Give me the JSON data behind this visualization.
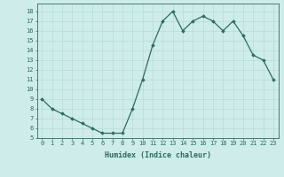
{
  "x": [
    0,
    1,
    2,
    3,
    4,
    5,
    6,
    7,
    8,
    9,
    10,
    11,
    12,
    13,
    14,
    15,
    16,
    17,
    18,
    19,
    20,
    21,
    22,
    23
  ],
  "y": [
    9,
    8,
    7.5,
    7,
    6.5,
    6,
    5.5,
    5.5,
    5.5,
    8,
    11,
    14.5,
    17,
    18,
    16,
    17,
    17.5,
    17,
    16,
    17,
    15.5,
    13.5,
    13,
    11
  ],
  "line_color": "#2e6b5e",
  "marker": "D",
  "marker_size": 1.8,
  "linewidth": 0.9,
  "xlabel": "Humidex (Indice chaleur)",
  "ylabel": "",
  "xlim": [
    -0.5,
    23.5
  ],
  "ylim": [
    5,
    18.8
  ],
  "yticks": [
    5,
    6,
    7,
    8,
    9,
    10,
    11,
    12,
    13,
    14,
    15,
    16,
    17,
    18
  ],
  "xticks": [
    0,
    1,
    2,
    3,
    4,
    5,
    6,
    7,
    8,
    9,
    10,
    11,
    12,
    13,
    14,
    15,
    16,
    17,
    18,
    19,
    20,
    21,
    22,
    23
  ],
  "bg_color": "#cdecea",
  "grid_color": "#b8dcd8",
  "tick_color": "#2e6b5e",
  "label_color": "#2e6b5e",
  "tick_fontsize": 5.0,
  "xlabel_fontsize": 6.0
}
